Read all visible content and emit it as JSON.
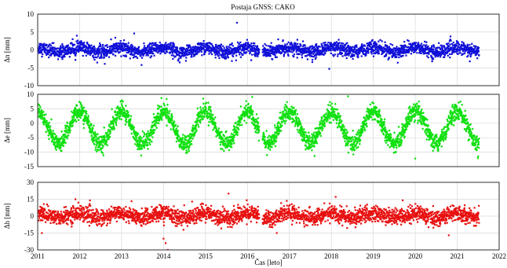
{
  "chart_data": [
    {
      "type": "scatter",
      "title": "Postaja GNSS: CAKO",
      "ylabel": "Δn [mm]",
      "ylim": [
        -10,
        10
      ],
      "yticks": [
        -10,
        -5,
        0,
        5,
        10
      ],
      "xlim": [
        2011,
        2022
      ],
      "grid": true,
      "series": [
        {
          "color": "#1010d8",
          "shape": "square",
          "model": {
            "offset": 0.0,
            "amplitude": 0.6,
            "noise": 0.9
          },
          "gaps": [
            [
              2016.28,
              2016.36
            ]
          ],
          "outliers": [
            [
              2015.75,
              7.6
            ],
            [
              2013.3,
              4.6
            ],
            [
              2012.85,
              3.4
            ],
            [
              2017.95,
              -5.3
            ],
            [
              2012.6,
              -3.9
            ],
            [
              2021.3,
              -3.2
            ],
            [
              2011.9,
              -2.8
            ]
          ],
          "sampled_x": [
            2011.0,
            2012.0,
            2013.0,
            2014.0,
            2015.0,
            2016.0,
            2017.0,
            2018.0,
            2019.0,
            2020.0,
            2021.0,
            2021.5
          ],
          "sampled_y": [
            0.3,
            -0.2,
            1.0,
            0.4,
            0.1,
            0.2,
            0.6,
            0.1,
            0.5,
            0.3,
            0.7,
            -1.2
          ]
        }
      ]
    },
    {
      "type": "scatter",
      "ylabel": "Δe [mm]",
      "ylim": [
        -15,
        10
      ],
      "yticks": [
        -15,
        -10,
        -5,
        0,
        5,
        10
      ],
      "xlim": [
        2011,
        2022
      ],
      "grid": true,
      "series": [
        {
          "color": "#10e010",
          "shape": "diamond",
          "model": {
            "offset": -1.5,
            "amplitude": 5.5,
            "noise": 1.5
          },
          "gaps": [
            [
              2016.28,
              2016.36
            ]
          ],
          "outliers": [
            [
              2013.95,
              8.7
            ],
            [
              2018.4,
              9.3
            ],
            [
              2021.5,
              -11.5
            ],
            [
              2017.6,
              -11.3
            ],
            [
              2012.55,
              -10.3
            ],
            [
              2020.0,
              -12.2
            ]
          ],
          "sampled_x": [
            2011.1,
            2011.6,
            2012.1,
            2012.6,
            2013.1,
            2013.6,
            2014.1,
            2014.6,
            2015.1,
            2015.6,
            2016.1,
            2016.6,
            2017.1,
            2017.6,
            2018.1,
            2018.6,
            2019.1,
            2019.6,
            2020.1,
            2020.6,
            2021.1,
            2021.5
          ],
          "sampled_y": [
            6.0,
            -6.5,
            5.0,
            -7.5,
            4.5,
            -6.5,
            5.5,
            -7.0,
            4.5,
            -6.0,
            4.0,
            -4.5,
            4.5,
            -7.0,
            4.5,
            -5.0,
            3.5,
            -5.0,
            3.5,
            -4.0,
            6.0,
            -8.0
          ]
        }
      ]
    },
    {
      "type": "scatter",
      "ylabel": "Δh [mm]",
      "xlabel": "Čas [leto]",
      "ylim": [
        -30,
        30
      ],
      "yticks": [
        -30,
        -15,
        0,
        15,
        30
      ],
      "xlim": [
        2011,
        2022
      ],
      "xticks": [
        2011,
        2012,
        2013,
        2014,
        2015,
        2016,
        2017,
        2018,
        2019,
        2020,
        2021,
        2022
      ],
      "grid": true,
      "series": [
        {
          "color": "#e81010",
          "shape": "square",
          "model": {
            "offset": 0.5,
            "amplitude": 2.0,
            "noise": 3.5
          },
          "gaps": [
            [
              2016.28,
              2016.36
            ]
          ],
          "outliers": [
            [
              2014.05,
              -24
            ],
            [
              2014.1,
              -30
            ],
            [
              2014.0,
              -20
            ],
            [
              2015.55,
              20
            ],
            [
              2011.9,
              15
            ],
            [
              2011.1,
              -15
            ],
            [
              2016.7,
              -15
            ],
            [
              2020.8,
              -17
            ],
            [
              2019.7,
              14
            ]
          ],
          "sampled_x": [
            2011.0,
            2012.0,
            2013.0,
            2014.0,
            2015.0,
            2016.0,
            2017.0,
            2018.0,
            2019.0,
            2020.0,
            2021.0,
            2021.5
          ],
          "sampled_y": [
            -1.0,
            2.0,
            1.5,
            -1.0,
            0.5,
            0.0,
            1.0,
            1.5,
            0.5,
            1.0,
            2.0,
            1.0
          ]
        }
      ]
    }
  ]
}
